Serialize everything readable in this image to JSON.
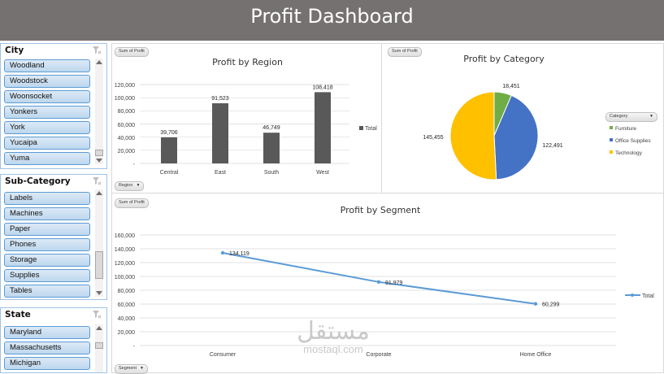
{
  "dashboard": {
    "title": "Profit Dashboard"
  },
  "slicers": {
    "city": {
      "title": "City",
      "items": [
        "Woodland",
        "Woodstock",
        "Woonsocket",
        "Yonkers",
        "York",
        "Yucaipa",
        "Yuma"
      ]
    },
    "subcategory": {
      "title": "Sub-Category",
      "items": [
        "Labels",
        "Machines",
        "Paper",
        "Phones",
        "Storage",
        "Supplies",
        "Tables"
      ]
    },
    "state": {
      "title": "State",
      "items": [
        "Maryland",
        "Massachusetts",
        "Michigan"
      ]
    }
  },
  "region_chart": {
    "field_button": "Sum of Profit",
    "axis_button": "Region",
    "title": "Profit by Region",
    "legend": "Total",
    "bar_color": "#595959",
    "y_ticks": [
      "120,000",
      "100,000",
      "80,000",
      "60,000",
      "40,000",
      "20,000",
      "-"
    ],
    "data_labels": [
      "39,706",
      "91,523",
      "46,749",
      "108,418"
    ]
  },
  "category_chart": {
    "field_button": "Sum of Profit",
    "legend_button": "Category",
    "title": "Profit by Category",
    "legend": [
      "Furniture",
      "Office Supplies",
      "Technology"
    ],
    "colors": [
      "#70ad47",
      "#4472c4",
      "#ffc000"
    ],
    "data_labels": [
      "18,451",
      "122,491",
      "145,455"
    ]
  },
  "segment_chart": {
    "field_button": "Sum of Profit",
    "axis_button": "Segment",
    "title": "Profit by Segment",
    "legend": "Total",
    "line_color": "#5b9bd5",
    "y_ticks": [
      "160,000",
      "140,000",
      "120,000",
      "100,000",
      "80,000",
      "60,000",
      "40,000",
      "20,000",
      "-"
    ],
    "data_labels": [
      "134,119",
      "91,979",
      "60,299"
    ]
  },
  "chart_data": [
    {
      "type": "bar",
      "title": "Profit by Region",
      "categories": [
        "Central",
        "East",
        "South",
        "West"
      ],
      "series": [
        {
          "name": "Total",
          "values": [
            39706,
            91523,
            46749,
            108418
          ]
        }
      ],
      "ylim": [
        0,
        120000
      ],
      "legend_position": "right",
      "grid": true
    },
    {
      "type": "pie",
      "title": "Profit by Category",
      "categories": [
        "Furniture",
        "Office Supplies",
        "Technology"
      ],
      "values": [
        18451,
        122491,
        145455
      ],
      "legend_position": "right"
    },
    {
      "type": "line",
      "title": "Profit by Segment",
      "categories": [
        "Consumer",
        "Corporate",
        "Home Office"
      ],
      "series": [
        {
          "name": "Total",
          "values": [
            134119,
            91979,
            60299
          ]
        }
      ],
      "ylim": [
        0,
        160000
      ],
      "legend_position": "right",
      "grid": true
    }
  ],
  "watermark": {
    "text": "مستقل",
    "subtext": "mostaql.com"
  }
}
